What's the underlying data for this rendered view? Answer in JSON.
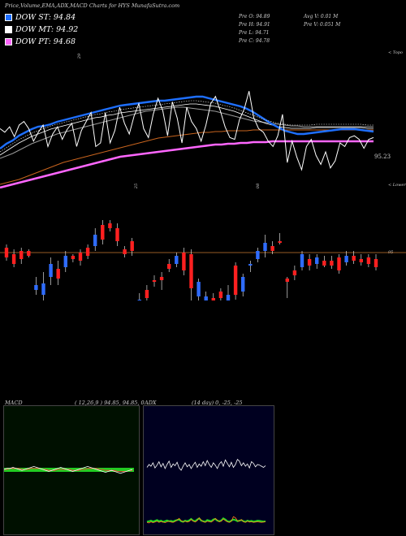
{
  "header": {
    "title": "Price,Volume,EMA,ADX,MACD Charts for HYS MunafaSutra.com"
  },
  "legend": [
    {
      "label": "DOW ST: 94.84",
      "color": "#1e6fff"
    },
    {
      "label": "DOW MT: 94.92",
      "color": "#ffffff"
    },
    {
      "label": "DOW PT: 94.68",
      "color": "#ff66ff"
    }
  ],
  "stats": {
    "pre_o": "Pre O: 94.89",
    "pre_h": "Pre H: 94.91",
    "pre_l": "Pre L: 94.71",
    "pre_c": "Pre C: 94.78",
    "avg_v": "Avg V: 0.01 M",
    "pre_v": "Pre V: 0.051 M"
  },
  "price_tag": "95.23",
  "upper_right": "< Topo",
  "lower_right": "< Lower",
  "axis_marks": [
    "29",
    "25",
    "08"
  ],
  "candle_level": "95",
  "macd": {
    "label": "MACD",
    "params": "( 12,26,9 ) 94.85, 94.85, 0"
  },
  "adx": {
    "label": "ADX",
    "params": "(14 day) 0, -25, -25"
  },
  "chart_data": {
    "type": "line",
    "colors": {
      "white": "#ffffff",
      "blue": "#1e6fff",
      "magenta": "#ff66ff",
      "orange": "#c8641e",
      "grey": "#999999"
    },
    "price": [
      6,
      2,
      8,
      -3,
      10,
      14,
      6,
      -8,
      2,
      10,
      -14,
      0,
      8,
      -6,
      5,
      12,
      -14,
      4,
      14,
      24,
      -14,
      -10,
      24,
      -10,
      4,
      30,
      12,
      0,
      20,
      34,
      6,
      -4,
      22,
      40,
      26,
      -2,
      36,
      18,
      -10,
      30,
      14,
      6,
      -8,
      10,
      34,
      42,
      26,
      8,
      -4,
      -6,
      16,
      28,
      48,
      18,
      6,
      2,
      -8,
      -14,
      -2,
      22,
      -32,
      -8,
      -26,
      -40,
      -14,
      -6,
      -24,
      -34,
      -20,
      -38,
      -30,
      -10,
      -14,
      -4,
      -2,
      -6,
      -16,
      -6,
      -4
    ],
    "ema_fast": [
      -18,
      -12,
      -8,
      -2,
      2,
      6,
      9,
      10,
      12,
      15,
      17,
      19,
      21,
      23,
      25,
      27,
      29,
      31,
      33,
      35,
      36,
      37,
      38,
      39,
      40,
      41,
      41,
      42,
      43,
      44,
      45,
      46,
      46,
      44,
      42,
      40,
      38,
      36,
      34,
      31,
      27,
      22,
      17,
      12,
      8,
      4,
      2,
      0,
      0,
      1,
      2,
      3,
      4,
      5,
      6,
      6,
      6,
      5,
      4,
      3
    ],
    "ema_mid": [
      -26,
      -21,
      -16,
      -11,
      -7,
      -3,
      0,
      3,
      6,
      8,
      10,
      12,
      14,
      16,
      18,
      20,
      21,
      23,
      24,
      26,
      27,
      28,
      29,
      30,
      31,
      32,
      33,
      34,
      35,
      36,
      37,
      37,
      36,
      35,
      34,
      32,
      30,
      28,
      25,
      22,
      19,
      16,
      13,
      11,
      9,
      8,
      7,
      7,
      7,
      7,
      8,
      8,
      8,
      8,
      8,
      8,
      8,
      8,
      7,
      7
    ],
    "ema_slow": [
      -30,
      -27,
      -24,
      -20,
      -16,
      -12,
      -9,
      -6,
      -3,
      0,
      2,
      4,
      6,
      8,
      10,
      12,
      14,
      16,
      18,
      20,
      22,
      24,
      26,
      28,
      29,
      30,
      31,
      32,
      33,
      33,
      32,
      31,
      30,
      29,
      28,
      26,
      24,
      22,
      20,
      18,
      16,
      15,
      14,
      13,
      12,
      11,
      10,
      10,
      9,
      9,
      9,
      9,
      9,
      9,
      9,
      9,
      9,
      9,
      9,
      9
    ],
    "ema_long": [
      -62,
      -60,
      -58,
      -56,
      -53,
      -50,
      -47,
      -44,
      -41,
      -38,
      -35,
      -33,
      -31,
      -29,
      -27,
      -25,
      -23,
      -21,
      -19,
      -17,
      -15,
      -13,
      -11,
      -9,
      -7,
      -5,
      -4,
      -3,
      -2,
      -1,
      0,
      1,
      2,
      2,
      3,
      3,
      4,
      4,
      4,
      4,
      5,
      5,
      5,
      5,
      5,
      5,
      5,
      5,
      5,
      5,
      5,
      5,
      5,
      5,
      5,
      5,
      5,
      5,
      5,
      5
    ],
    "ema_pt": [
      -66,
      -64,
      -62,
      -60,
      -58,
      -56,
      -54,
      -52,
      -50,
      -48,
      -46,
      -44,
      -42,
      -40,
      -38,
      -36,
      -34,
      -32,
      -30,
      -28,
      -27,
      -26,
      -25,
      -24,
      -23,
      -22,
      -21,
      -20,
      -19,
      -18,
      -17,
      -16,
      -15,
      -14,
      -13,
      -13,
      -12,
      -12,
      -11,
      -11,
      -10,
      -10,
      -10,
      -9,
      -9,
      -9,
      -9,
      -9,
      -9,
      -9,
      -9,
      -9,
      -9,
      -9,
      -9,
      -9,
      -9,
      -9,
      -9,
      -9
    ],
    "candles": [
      {
        "o": -6,
        "c": 6,
        "h": 10,
        "l": -10,
        "up": false
      },
      {
        "o": -14,
        "c": -2,
        "h": 4,
        "l": -18,
        "up": false
      },
      {
        "o": -8,
        "c": 2,
        "h": 6,
        "l": -14,
        "up": false
      },
      {
        "o": -4,
        "c": 2,
        "h": 4,
        "l": -6,
        "up": false
      },
      {
        "o": -40,
        "c": -46,
        "h": -30,
        "l": -52,
        "up": true
      },
      {
        "o": -38,
        "c": -52,
        "h": -24,
        "l": -60,
        "up": true
      },
      {
        "o": -14,
        "c": -30,
        "h": -6,
        "l": -40,
        "up": true
      },
      {
        "o": -20,
        "c": -32,
        "h": -10,
        "l": -40,
        "up": false
      },
      {
        "o": -4,
        "c": -18,
        "h": 2,
        "l": -24,
        "up": true
      },
      {
        "o": -8,
        "c": -4,
        "h": -2,
        "l": -12,
        "up": false
      },
      {
        "o": -10,
        "c": 0,
        "h": 4,
        "l": -16,
        "up": false
      },
      {
        "o": -4,
        "c": 6,
        "h": 10,
        "l": -8,
        "up": false
      },
      {
        "o": 8,
        "c": 22,
        "h": 30,
        "l": 2,
        "up": true
      },
      {
        "o": 16,
        "c": 34,
        "h": 40,
        "l": 10,
        "up": false
      },
      {
        "o": 30,
        "c": 36,
        "h": 40,
        "l": 26,
        "up": false
      },
      {
        "o": 14,
        "c": 30,
        "h": 36,
        "l": 8,
        "up": false
      },
      {
        "o": -2,
        "c": 4,
        "h": 8,
        "l": -6,
        "up": false
      },
      {
        "o": 2,
        "c": 14,
        "h": 18,
        "l": -4,
        "up": false
      },
      {
        "o": -58,
        "c": -66,
        "h": -50,
        "l": -72,
        "up": true
      },
      {
        "o": -46,
        "c": -56,
        "h": -40,
        "l": -62,
        "up": false
      },
      {
        "o": -34,
        "c": -36,
        "h": -28,
        "l": -42,
        "up": false
      },
      {
        "o": -30,
        "c": -34,
        "h": -24,
        "l": -46,
        "up": false
      },
      {
        "o": -14,
        "c": -20,
        "h": -8,
        "l": -24,
        "up": false
      },
      {
        "o": -4,
        "c": -14,
        "h": 0,
        "l": -18,
        "up": true
      },
      {
        "o": 0,
        "c": -22,
        "h": 6,
        "l": -28,
        "up": false
      },
      {
        "o": -2,
        "c": -44,
        "h": 4,
        "l": -66,
        "up": false
      },
      {
        "o": -36,
        "c": -54,
        "h": -32,
        "l": -60,
        "up": true
      },
      {
        "o": -54,
        "c": -60,
        "h": -48,
        "l": -66,
        "up": true
      },
      {
        "o": -56,
        "c": -62,
        "h": -50,
        "l": -70,
        "up": false
      },
      {
        "o": -48,
        "c": -56,
        "h": -44,
        "l": -62,
        "up": false
      },
      {
        "o": -52,
        "c": -60,
        "h": -40,
        "l": -64,
        "up": true
      },
      {
        "o": -16,
        "c": -52,
        "h": -12,
        "l": -58,
        "up": false
      },
      {
        "o": -30,
        "c": -48,
        "h": -26,
        "l": -54,
        "up": true
      },
      {
        "o": -16,
        "c": -14,
        "h": -10,
        "l": -24,
        "up": true
      },
      {
        "o": -8,
        "c": 2,
        "h": 6,
        "l": -12,
        "up": true
      },
      {
        "o": 2,
        "c": 12,
        "h": 22,
        "l": -6,
        "up": true
      },
      {
        "o": 2,
        "c": 8,
        "h": 14,
        "l": -2,
        "up": false
      },
      {
        "o": 12,
        "c": 14,
        "h": 24,
        "l": 10,
        "up": false
      },
      {
        "o": -36,
        "c": -32,
        "h": -30,
        "l": -56,
        "up": false
      },
      {
        "o": -22,
        "c": -28,
        "h": -16,
        "l": -34,
        "up": false
      },
      {
        "o": -2,
        "c": -18,
        "h": 2,
        "l": -22,
        "up": true
      },
      {
        "o": -8,
        "c": -16,
        "h": -2,
        "l": -22,
        "up": false
      },
      {
        "o": -6,
        "c": -14,
        "h": -2,
        "l": -20,
        "up": true
      },
      {
        "o": -10,
        "c": -16,
        "h": -4,
        "l": -18,
        "up": false
      },
      {
        "o": -10,
        "c": -16,
        "h": -4,
        "l": -20,
        "up": false
      },
      {
        "o": -6,
        "c": -22,
        "h": -2,
        "l": -26,
        "up": false
      },
      {
        "o": -4,
        "c": -12,
        "h": 2,
        "l": -16,
        "up": true
      },
      {
        "o": -4,
        "c": -10,
        "h": 2,
        "l": -14,
        "up": false
      },
      {
        "o": -8,
        "c": -12,
        "h": -2,
        "l": -16,
        "up": false
      },
      {
        "o": -6,
        "c": -14,
        "h": -2,
        "l": -18,
        "up": false
      },
      {
        "o": -8,
        "c": -18,
        "h": -2,
        "l": -22,
        "up": false
      }
    ],
    "macd_line": [
      0,
      1,
      1,
      2,
      1,
      0,
      -1,
      0,
      1,
      2,
      3,
      2,
      1,
      0,
      -1,
      -2,
      -1,
      0,
      1,
      2,
      1,
      0,
      -1,
      -2,
      -1,
      0,
      1,
      2,
      3,
      2,
      1,
      0,
      -1,
      -2,
      -3,
      -2,
      -1,
      -2,
      -3,
      -4,
      -3,
      -2,
      -1,
      0
    ],
    "macd_signal": [
      0,
      0,
      1,
      1,
      1,
      1,
      0,
      0,
      0,
      1,
      1,
      1,
      1,
      0,
      0,
      -1,
      -1,
      -1,
      0,
      0,
      0,
      0,
      0,
      -1,
      -1,
      -1,
      0,
      0,
      1,
      1,
      1,
      1,
      0,
      0,
      -1,
      -1,
      -1,
      -1,
      -2,
      -2,
      -2,
      -2,
      -1,
      -1
    ],
    "adx_plus": [
      70,
      80,
      74,
      86,
      68,
      78,
      90,
      72,
      84,
      66,
      80,
      92,
      70,
      82,
      76,
      88,
      68,
      60,
      74,
      86,
      72,
      80,
      66,
      78,
      88,
      70,
      82,
      74,
      90,
      76,
      94,
      80,
      70,
      86,
      78,
      66,
      82,
      90,
      74,
      96,
      84,
      72,
      88,
      70,
      80,
      98,
      92,
      76,
      86,
      74,
      82,
      68,
      90,
      84,
      72,
      80,
      78,
      74,
      70,
      76
    ],
    "adx_minus": [
      10,
      12,
      14,
      11,
      13,
      16,
      12,
      14,
      10,
      12,
      15,
      12,
      13,
      11,
      14,
      16,
      18,
      12,
      10,
      14,
      12,
      15,
      20,
      14,
      12,
      18,
      22,
      14,
      12,
      10,
      16,
      14,
      12,
      18,
      20,
      14,
      12,
      15,
      22,
      18,
      12,
      10,
      14,
      18,
      16,
      12,
      14,
      16,
      12,
      10,
      14,
      12,
      13,
      11,
      12,
      14,
      13,
      12,
      11,
      12
    ],
    "adx_line": [
      8,
      6,
      10,
      7,
      9,
      12,
      8,
      11,
      9,
      7,
      10,
      12,
      9,
      8,
      11,
      16,
      22,
      14,
      10,
      12,
      9,
      11,
      18,
      12,
      9,
      14,
      24,
      16,
      10,
      8,
      12,
      10,
      9,
      14,
      22,
      16,
      10,
      12,
      20,
      14,
      10,
      8,
      12,
      28,
      24,
      14,
      12,
      18,
      10,
      8,
      12,
      9,
      10,
      8,
      9,
      10,
      9,
      8,
      9,
      10
    ]
  }
}
